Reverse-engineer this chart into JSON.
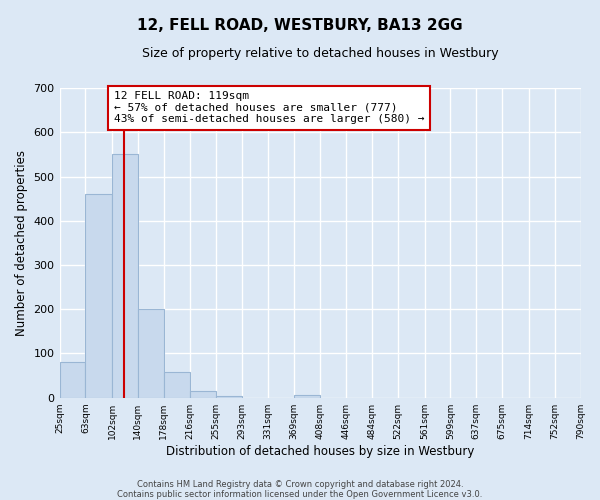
{
  "title": "12, FELL ROAD, WESTBURY, BA13 2GG",
  "subtitle": "Size of property relative to detached houses in Westbury",
  "xlabel": "Distribution of detached houses by size in Westbury",
  "ylabel": "Number of detached properties",
  "bar_color": "#c8d9ed",
  "bar_edge_color": "#9ab6d4",
  "bin_edges": [
    25,
    63,
    102,
    140,
    178,
    216,
    255,
    293,
    331,
    369,
    408,
    446,
    484,
    522,
    561,
    599,
    637,
    675,
    714,
    752,
    790
  ],
  "bar_heights": [
    80,
    460,
    550,
    200,
    58,
    15,
    3,
    0,
    0,
    5,
    0,
    0,
    0,
    0,
    0,
    0,
    0,
    0,
    0,
    0
  ],
  "tick_labels": [
    "25sqm",
    "63sqm",
    "102sqm",
    "140sqm",
    "178sqm",
    "216sqm",
    "255sqm",
    "293sqm",
    "331sqm",
    "369sqm",
    "408sqm",
    "446sqm",
    "484sqm",
    "522sqm",
    "561sqm",
    "599sqm",
    "637sqm",
    "675sqm",
    "714sqm",
    "752sqm",
    "790sqm"
  ],
  "vline_x": 119,
  "vline_color": "#cc0000",
  "annotation_text": "12 FELL ROAD: 119sqm\n← 57% of detached houses are smaller (777)\n43% of semi-detached houses are larger (580) →",
  "annotation_box_color": "#ffffff",
  "annotation_box_edge": "#cc0000",
  "ylim": [
    0,
    700
  ],
  "yticks": [
    0,
    100,
    200,
    300,
    400,
    500,
    600,
    700
  ],
  "footer_line1": "Contains HM Land Registry data © Crown copyright and database right 2024.",
  "footer_line2": "Contains public sector information licensed under the Open Government Licence v3.0.",
  "background_color": "#dce8f5",
  "plot_bg_color": "#dce8f5",
  "grid_color": "#ffffff"
}
